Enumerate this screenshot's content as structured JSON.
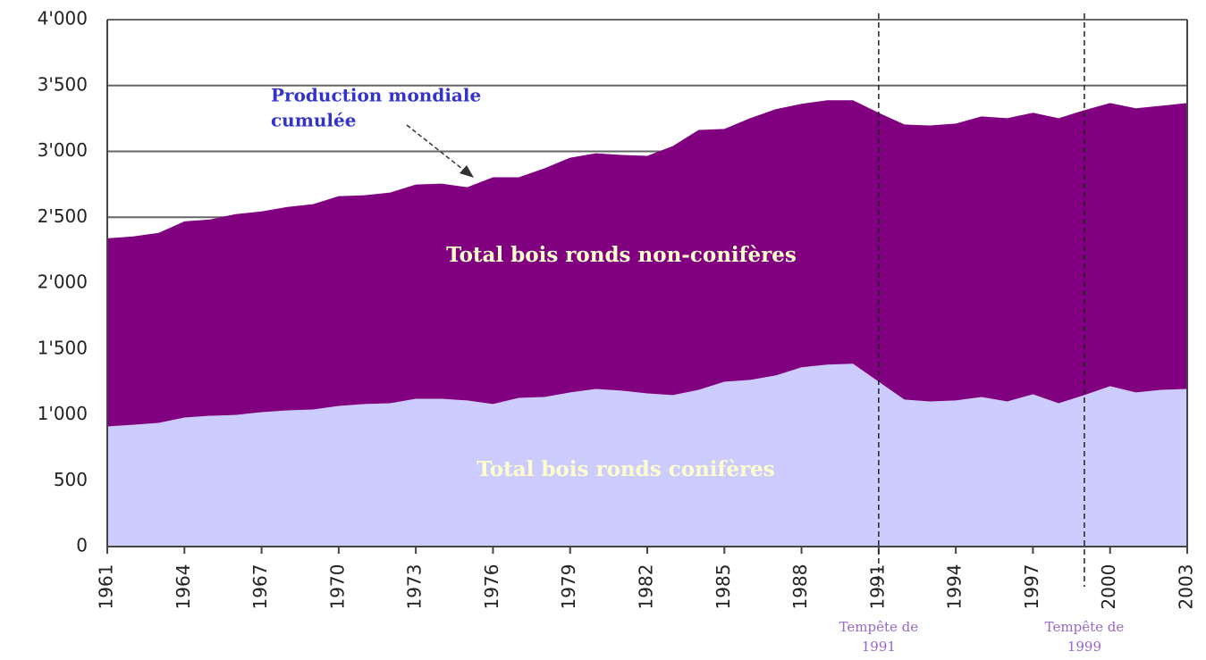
{
  "chart_data": {
    "type": "stacked-area",
    "x": [
      1961,
      1962,
      1963,
      1964,
      1965,
      1966,
      1967,
      1968,
      1969,
      1970,
      1971,
      1972,
      1973,
      1974,
      1975,
      1976,
      1977,
      1978,
      1979,
      1980,
      1981,
      1982,
      1983,
      1984,
      1985,
      1986,
      1987,
      1988,
      1989,
      1990,
      1991,
      1992,
      1993,
      1994,
      1995,
      1996,
      1997,
      1998,
      1999,
      2000,
      2001,
      2002,
      2003
    ],
    "series": [
      {
        "name": "Total bois ronds conifères",
        "color": "#ccccff",
        "values": [
          912,
          925,
          939,
          980,
          993,
          1000,
          1020,
          1034,
          1041,
          1068,
          1082,
          1088,
          1122,
          1122,
          1109,
          1082,
          1129,
          1136,
          1170,
          1197,
          1184,
          1163,
          1150,
          1190,
          1252,
          1265,
          1299,
          1361,
          1381,
          1388,
          1252,
          1116,
          1102,
          1109,
          1136,
          1102,
          1156,
          1088,
          1150,
          1218,
          1170,
          1190,
          1197
        ]
      },
      {
        "name": "Total bois ronds non-conifères",
        "color": "#800080",
        "values": [
          1428,
          1429,
          1442,
          1489,
          1490,
          1524,
          1524,
          1544,
          1558,
          1592,
          1585,
          1599,
          1626,
          1633,
          1619,
          1721,
          1674,
          1735,
          1782,
          1789,
          1789,
          1803,
          1891,
          1973,
          1918,
          1987,
          2021,
          2000,
          2007,
          2000,
          2041,
          2088,
          2095,
          2102,
          2129,
          2150,
          2137,
          2164,
          2163,
          2149,
          2157,
          2157,
          2170
        ]
      }
    ],
    "xlim": [
      1961,
      2003
    ],
    "xticks": [
      1961,
      1964,
      1967,
      1970,
      1973,
      1976,
      1979,
      1982,
      1985,
      1988,
      1991,
      1994,
      1997,
      2000,
      2003
    ],
    "ylim": [
      0,
      4000
    ],
    "yticks": [
      0,
      {
        "value": 500,
        "label": "500"
      },
      {
        "value": 1000,
        "label": "1'000"
      },
      {
        "value": 1500,
        "label": "1'500"
      },
      {
        "value": 2000,
        "label": "2'000"
      },
      {
        "value": 2500,
        "label": "2'500"
      },
      {
        "value": 3000,
        "label": "3'000"
      },
      {
        "value": 3500,
        "label": "3'500"
      },
      {
        "value": 4000,
        "label": "4'000"
      }
    ],
    "grid": true,
    "annotation": [
      "Production mondiale",
      "cumulée"
    ],
    "events": [
      {
        "x": 1991,
        "label": [
          "Tempête de",
          "1991"
        ]
      },
      {
        "x": 1999,
        "label": [
          "Tempête de",
          "1999"
        ]
      }
    ]
  }
}
